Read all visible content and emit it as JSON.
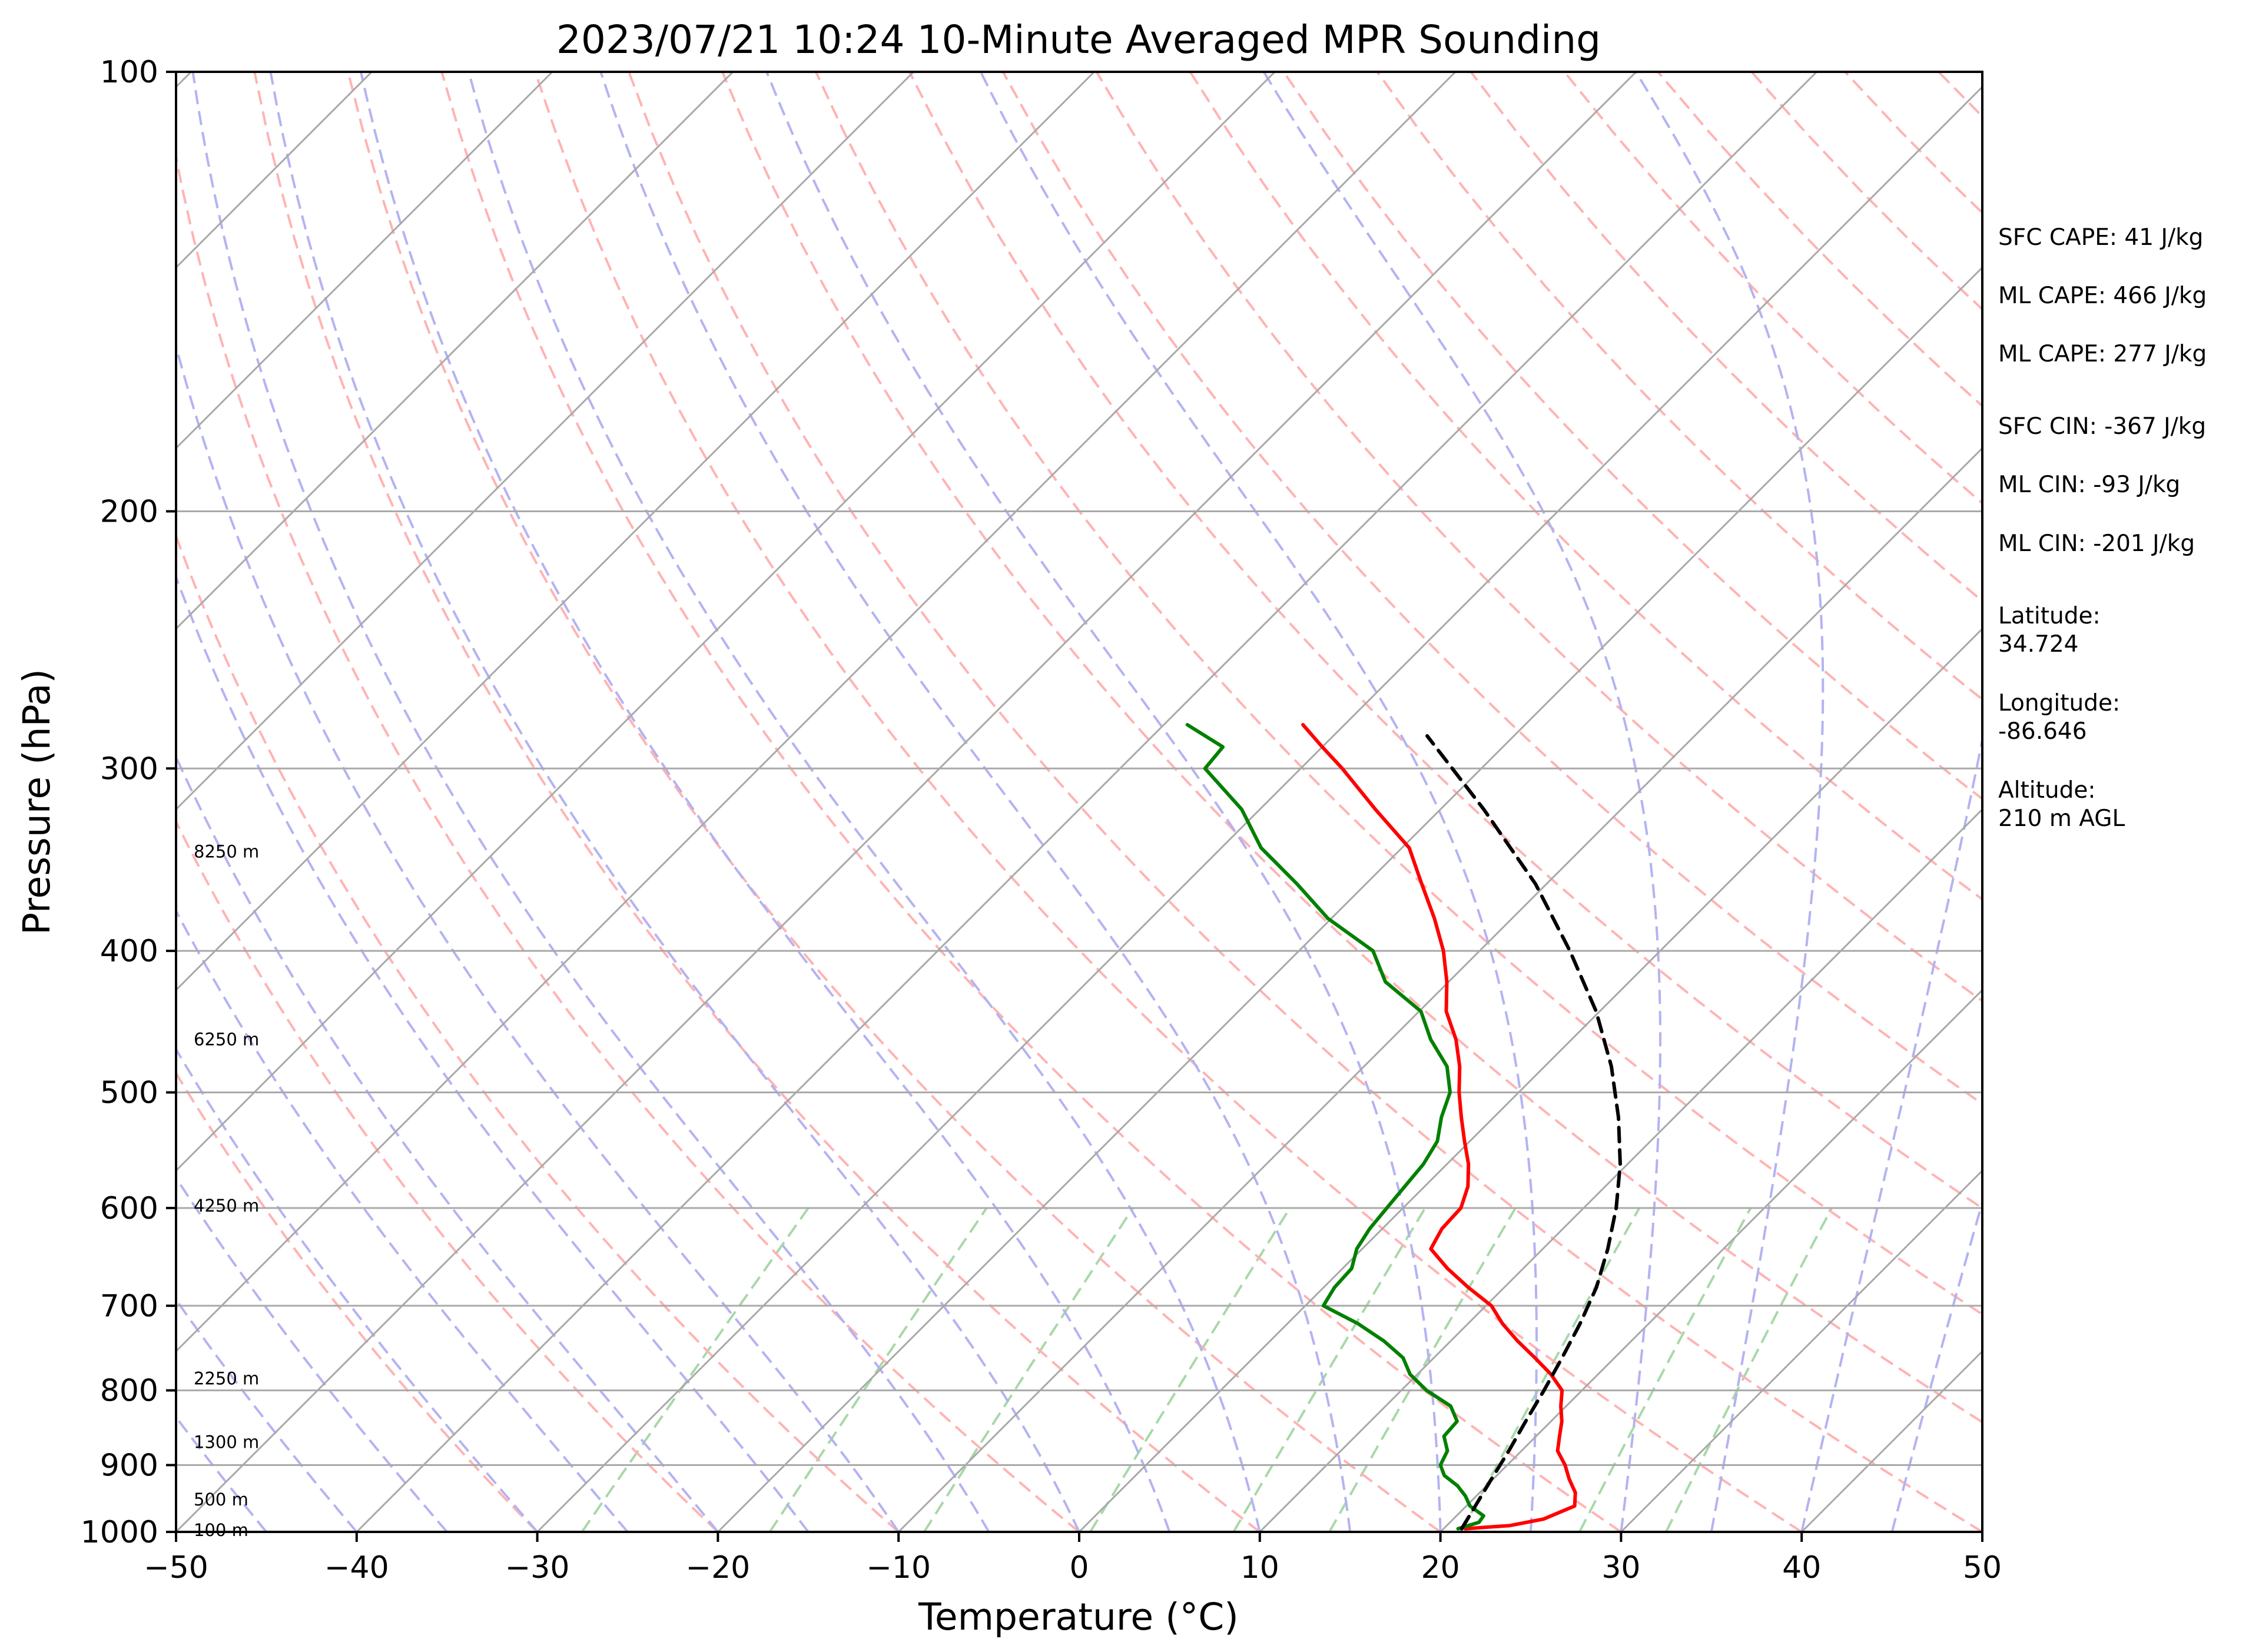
{
  "chart_data": {
    "type": "line",
    "subtype": "skew-t log-p sounding",
    "title": "2023/07/21 10:24 10-Minute Averaged MPR Sounding",
    "xlabel": "Temperature (°C)",
    "ylabel": "Pressure (hPa)",
    "xlim": [
      -50,
      50
    ],
    "ylim": [
      1000,
      100
    ],
    "y_scale": "log",
    "grid": true,
    "x_ticks": [
      -50,
      -40,
      -30,
      -20,
      -10,
      0,
      10,
      20,
      30,
      40,
      50
    ],
    "x_tick_labels": [
      "−50",
      "−40",
      "−30",
      "−20",
      "−10",
      "0",
      "10",
      "20",
      "30",
      "40",
      "50"
    ],
    "y_ticks": [
      1000,
      900,
      800,
      700,
      600,
      500,
      400,
      300,
      200,
      100
    ],
    "y_tick_labels": [
      "1000",
      "900",
      "800",
      "700",
      "600",
      "500",
      "400",
      "300",
      "200",
      "100"
    ],
    "colors": {
      "temperature": "#ff0000",
      "dewpoint": "#008000",
      "parcel": "#000000",
      "isotherm": "#a9a9a9",
      "dry_adiabat": "#ffb3b3",
      "moist_adiabat": "#b3b3f2",
      "mixing_ratio": "#a8d8a8"
    },
    "series": [
      {
        "key": "temperature",
        "pressure": [
          995,
          990,
          980,
          960,
          940,
          920,
          900,
          880,
          860,
          840,
          820,
          800,
          780,
          760,
          740,
          720,
          700,
          680,
          660,
          640,
          620,
          600,
          580,
          560,
          540,
          520,
          500,
          480,
          460,
          440,
          420,
          400,
          380,
          360,
          340,
          320,
          300,
          290,
          280
        ],
        "values": [
          21.2,
          23.5,
          25.0,
          26.0,
          25.3,
          24.2,
          23.2,
          22.0,
          21.3,
          20.6,
          19.7,
          18.9,
          17.4,
          15.6,
          13.7,
          11.9,
          10.3,
          8.0,
          5.8,
          3.8,
          3.3,
          3.2,
          2.4,
          1.2,
          -0.3,
          -1.8,
          -3.3,
          -4.7,
          -6.4,
          -8.5,
          -10.1,
          -12.0,
          -14.3,
          -16.9,
          -19.6,
          -23.6,
          -27.7,
          -30.0,
          -32.3
        ]
      },
      {
        "key": "dewpoint",
        "pressure": [
          995,
          985,
          975,
          960,
          945,
          930,
          915,
          900,
          880,
          860,
          840,
          820,
          800,
          780,
          760,
          740,
          720,
          700,
          680,
          660,
          640,
          620,
          600,
          580,
          560,
          540,
          520,
          500,
          480,
          460,
          440,
          420,
          400,
          380,
          360,
          340,
          320,
          300,
          290,
          280
        ],
        "values": [
          20.8,
          21.6,
          21.5,
          20.2,
          19.4,
          18.4,
          17.1,
          16.3,
          15.9,
          14.9,
          14.8,
          13.6,
          11.4,
          9.6,
          8.3,
          6.3,
          3.9,
          1.0,
          0.6,
          0.5,
          -0.3,
          -0.7,
          -0.9,
          -1.1,
          -1.3,
          -1.8,
          -2.9,
          -3.8,
          -5.4,
          -7.8,
          -9.9,
          -13.5,
          -15.9,
          -20.2,
          -23.8,
          -27.8,
          -31.0,
          -35.3,
          -35.5,
          -38.7
        ]
      },
      {
        "key": "parcel",
        "pressure": [
          995,
          960,
          920,
          880,
          840,
          800,
          760,
          720,
          680,
          640,
          600,
          560,
          520,
          480,
          440,
          400,
          360,
          320,
          285
        ],
        "values": [
          21.0,
          20.5,
          19.9,
          19.3,
          18.6,
          17.9,
          17.1,
          16.2,
          15.1,
          13.6,
          11.8,
          9.6,
          6.9,
          3.7,
          -0.2,
          -5.0,
          -10.6,
          -17.6,
          -24.8
        ]
      }
    ],
    "stats": [
      "SFC CAPE: 41 J/kg",
      "ML CAPE: 466 J/kg",
      "ML CAPE: 277 J/kg",
      "SFC CIN: -367 J/kg",
      "ML CIN: -93 J/kg",
      "ML CIN: -201 J/kg"
    ],
    "location": {
      "latitude_label": "Latitude:",
      "latitude": "34.724",
      "longitude_label": "Longitude:",
      "longitude": "-86.646",
      "altitude_label": "Altitude:",
      "altitude": "210 m AGL"
    },
    "height_labels": [
      {
        "pressure": 997,
        "text": "100 m"
      },
      {
        "pressure": 950,
        "text": "500 m"
      },
      {
        "pressure": 868,
        "text": "1300 m"
      },
      {
        "pressure": 785,
        "text": "2250 m"
      },
      {
        "pressure": 598,
        "text": "4250 m"
      },
      {
        "pressure": 460,
        "text": "6250 m"
      },
      {
        "pressure": 342,
        "text": "8250 m"
      }
    ]
  }
}
